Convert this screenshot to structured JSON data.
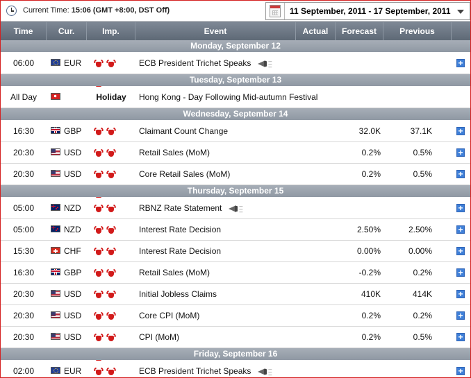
{
  "topbar": {
    "current_time_label": "Current Time:",
    "current_time_value": "15:06 (GMT +8:00, DST Off)",
    "date_range": "11 September, 2011 - 17 September, 2011"
  },
  "columns": {
    "time": "Time",
    "currency": "Cur.",
    "importance": "Imp.",
    "event": "Event",
    "actual": "Actual",
    "forecast": "Forecast",
    "previous": "Previous"
  },
  "colors": {
    "header_bg": "#6a7481",
    "day_row_bg": "#9aa2ac",
    "bull_red": "#d21a1a",
    "expand_blue": "#3e7fd8",
    "frame_border": "#d42020"
  },
  "days": [
    {
      "label": "Monday, September 12",
      "events": [
        {
          "time": "06:00",
          "flag": "eu",
          "currency": "EUR",
          "importance": 3,
          "event": "ECB President Trichet Speaks",
          "speech": true,
          "actual": "",
          "forecast": "",
          "previous": ""
        }
      ]
    },
    {
      "label": "Tuesday, September 13",
      "events": [
        {
          "time": "All Day",
          "flag": "hk",
          "currency": "",
          "holiday": "Holiday",
          "event": "Hong Kong - Day Following Mid-autumn Festival",
          "actual": "",
          "forecast": "",
          "previous": ""
        }
      ]
    },
    {
      "label": "Wednesday, September 14",
      "events": [
        {
          "time": "16:30",
          "flag": "gb",
          "currency": "GBP",
          "importance": 3,
          "event": "Claimant Count Change",
          "actual": "",
          "forecast": "32.0K",
          "previous": "37.1K"
        },
        {
          "time": "20:30",
          "flag": "us",
          "currency": "USD",
          "importance": 3,
          "event": "Retail Sales (MoM)",
          "actual": "",
          "forecast": "0.2%",
          "previous": "0.5%"
        },
        {
          "time": "20:30",
          "flag": "us",
          "currency": "USD",
          "importance": 3,
          "event": "Core Retail Sales (MoM)",
          "actual": "",
          "forecast": "0.2%",
          "previous": "0.5%"
        }
      ]
    },
    {
      "label": "Thursday, September 15",
      "events": [
        {
          "time": "05:00",
          "flag": "nz",
          "currency": "NZD",
          "importance": 3,
          "event": "RBNZ Rate Statement",
          "speech": true,
          "actual": "",
          "forecast": "",
          "previous": ""
        },
        {
          "time": "05:00",
          "flag": "nz",
          "currency": "NZD",
          "importance": 3,
          "event": "Interest Rate Decision",
          "actual": "",
          "forecast": "2.50%",
          "previous": "2.50%"
        },
        {
          "time": "15:30",
          "flag": "ch",
          "currency": "CHF",
          "importance": 3,
          "event": "Interest Rate Decision",
          "actual": "",
          "forecast": "0.00%",
          "previous": "0.00%"
        },
        {
          "time": "16:30",
          "flag": "gb",
          "currency": "GBP",
          "importance": 3,
          "event": "Retail Sales (MoM)",
          "actual": "",
          "forecast": "-0.2%",
          "previous": "0.2%"
        },
        {
          "time": "20:30",
          "flag": "us",
          "currency": "USD",
          "importance": 3,
          "event": "Initial Jobless Claims",
          "actual": "",
          "forecast": "410K",
          "previous": "414K"
        },
        {
          "time": "20:30",
          "flag": "us",
          "currency": "USD",
          "importance": 3,
          "event": "Core CPI (MoM)",
          "actual": "",
          "forecast": "0.2%",
          "previous": "0.2%"
        },
        {
          "time": "20:30",
          "flag": "us",
          "currency": "USD",
          "importance": 3,
          "event": "CPI (MoM)",
          "actual": "",
          "forecast": "0.2%",
          "previous": "0.5%"
        }
      ]
    },
    {
      "label": "Friday, September 16",
      "events": [
        {
          "time": "02:00",
          "flag": "eu",
          "currency": "EUR",
          "importance": 3,
          "event": "ECB President Trichet Speaks",
          "speech": true,
          "actual": "",
          "forecast": "",
          "previous": ""
        }
      ]
    }
  ]
}
